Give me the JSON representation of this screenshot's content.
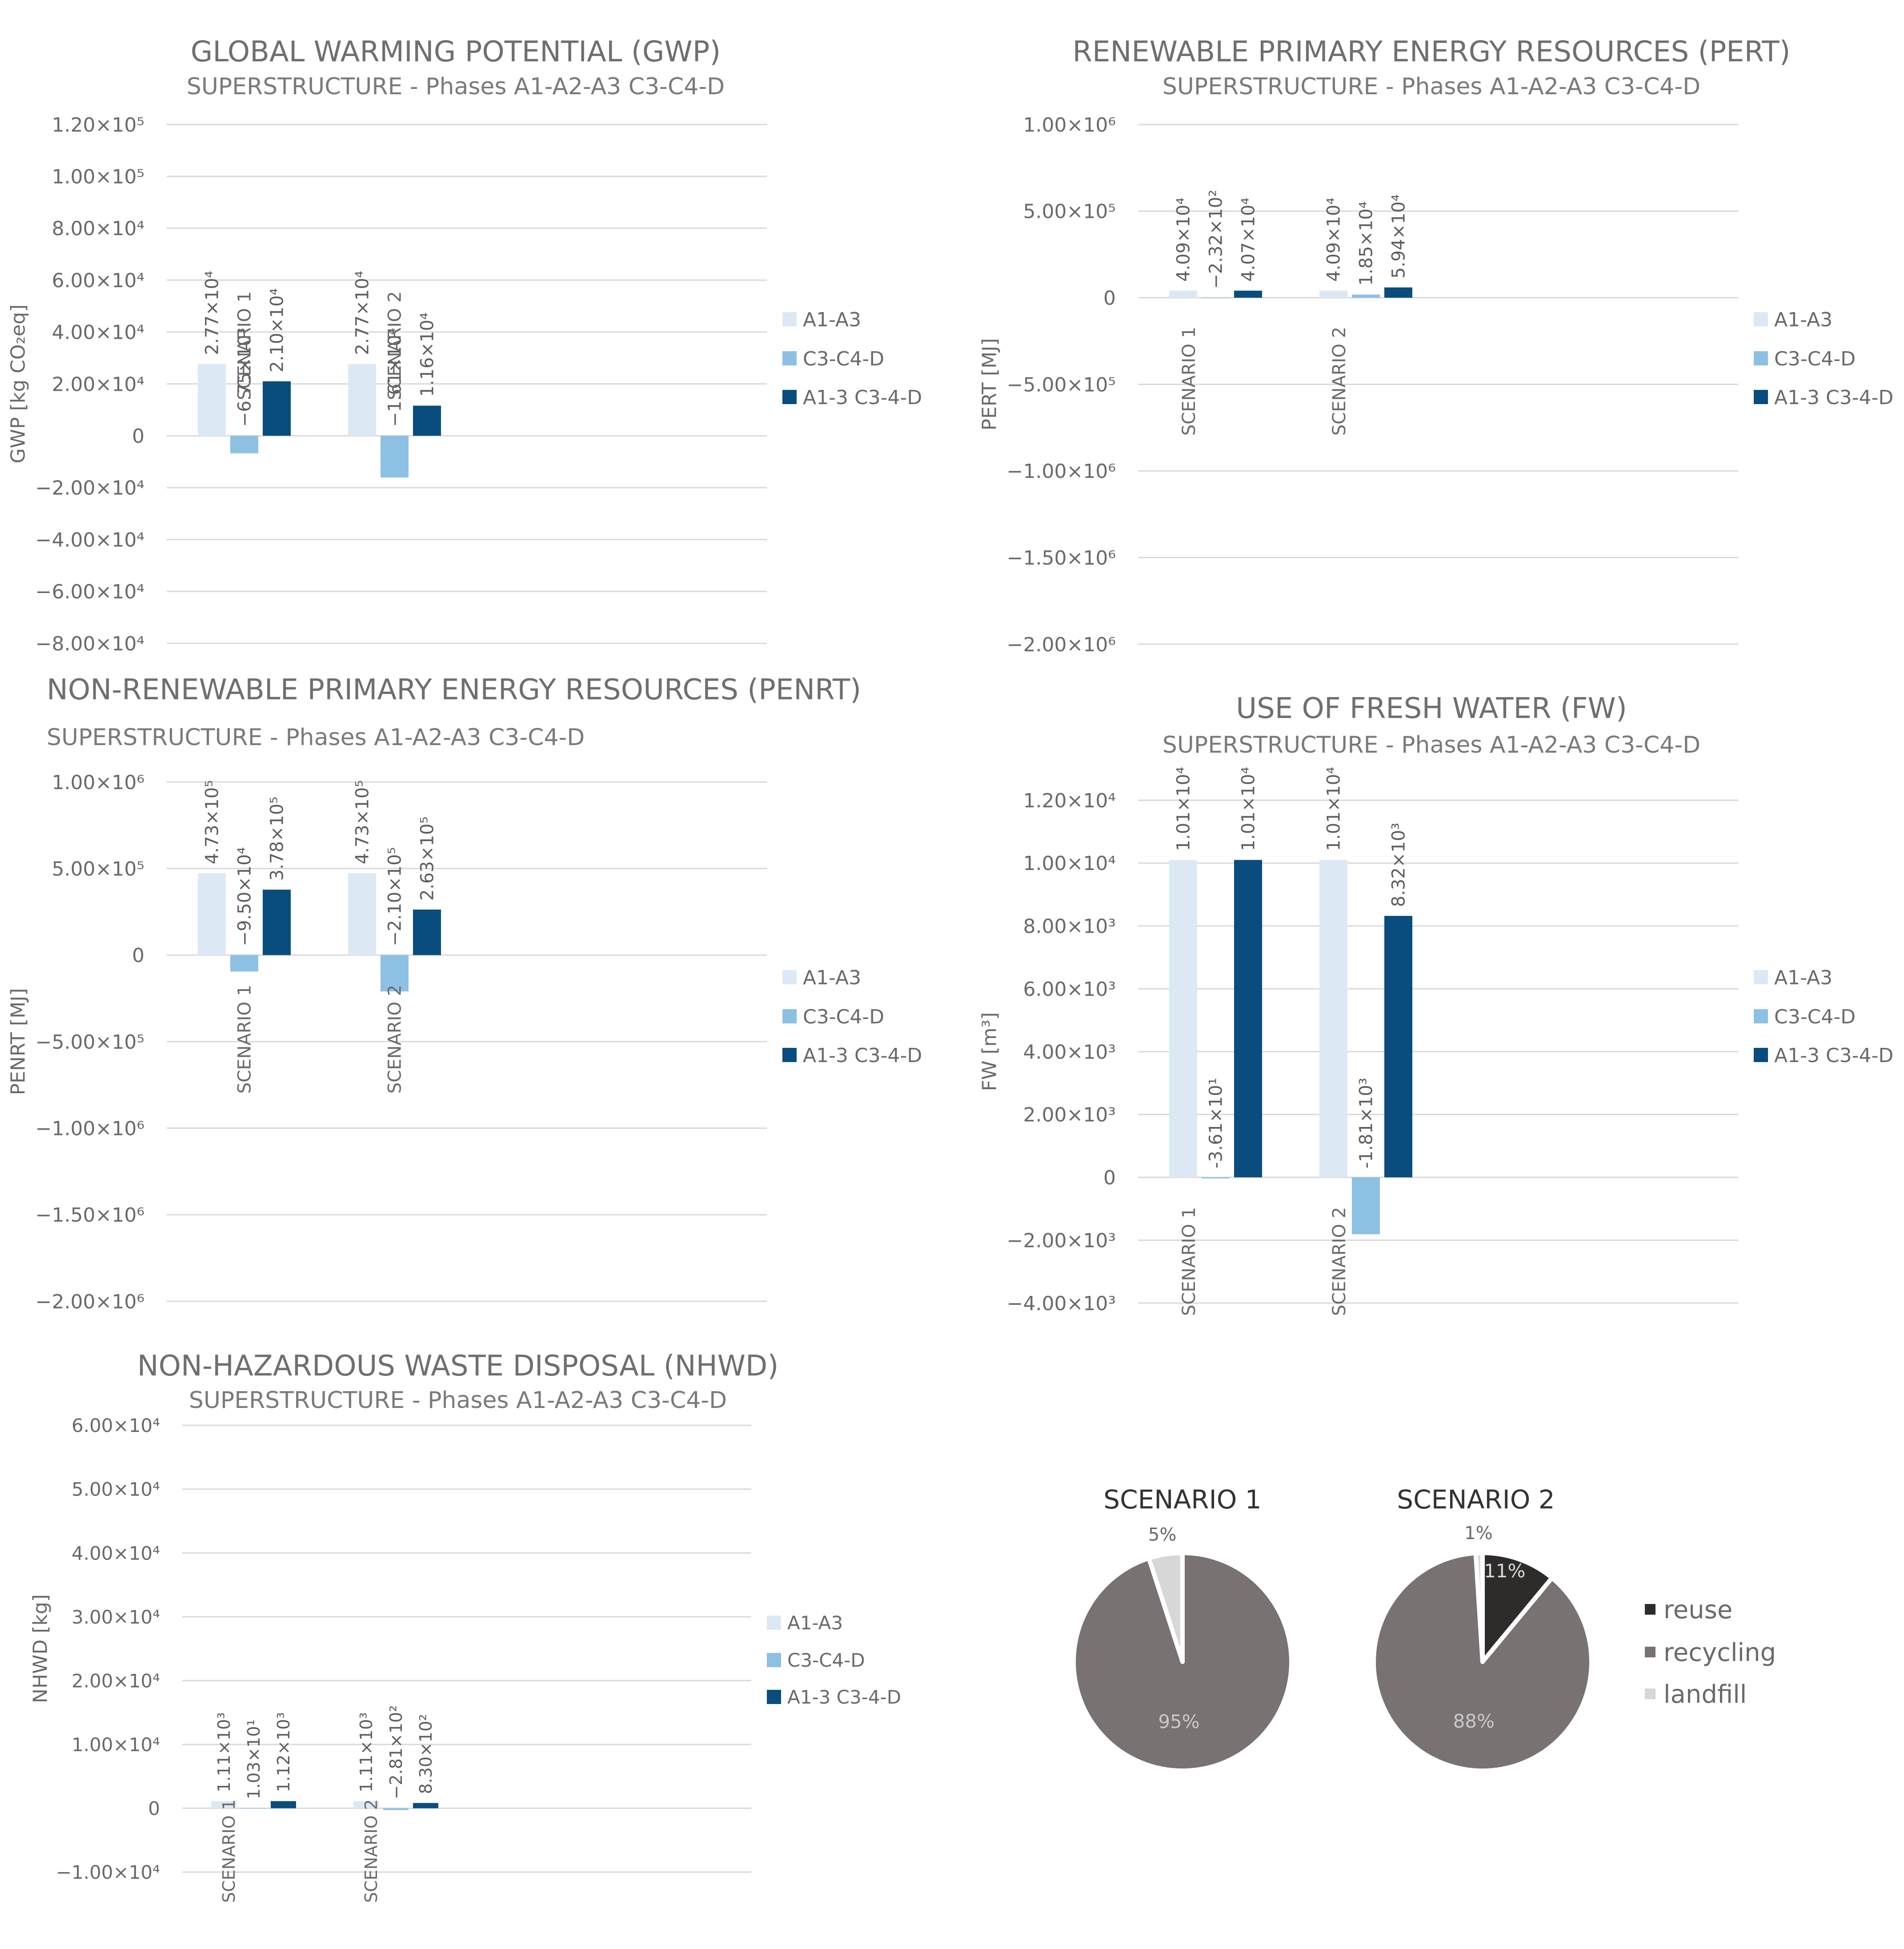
{
  "colors": {
    "A1-A3": "#dce9f5",
    "C3-C4-D": "#8cc1e4",
    "A1-3 C3-4-D": "#084d7d",
    "grid": "#d9d9d9",
    "reuse": "#2e2b2b",
    "recycling": "#787272",
    "landfill": "#d7d7d7"
  },
  "chart_data": [
    {
      "id": "gwp",
      "type": "bar",
      "title": "GLOBAL WARMING POTENTIAL (GWP)",
      "subtitle": "SUPERSTRUCTURE - Phases A1-A2-A3 C3-C4-D",
      "ylabel": "GWP [kg CO₂eq]",
      "ylim": [
        -80000,
        120000
      ],
      "ticks": [
        {
          "v": 120000,
          "label": "1.20×10⁵"
        },
        {
          "v": 100000,
          "label": "1.00×10⁵"
        },
        {
          "v": 80000,
          "label": "8.00×10⁴"
        },
        {
          "v": 60000,
          "label": "6.00×10⁴"
        },
        {
          "v": 40000,
          "label": "4.00×10⁴"
        },
        {
          "v": 20000,
          "label": "2.00×10⁴"
        },
        {
          "v": 0,
          "label": "0"
        },
        {
          "v": -20000,
          "label": "−2.00×10⁴"
        },
        {
          "v": -40000,
          "label": "−4.00×10⁴"
        },
        {
          "v": -60000,
          "label": "−6.00×10⁴"
        },
        {
          "v": -80000,
          "label": "−8.00×10⁴"
        }
      ],
      "categories": [
        "SCENARIO 1",
        "SCENARIO 2"
      ],
      "series": [
        {
          "name": "A1-A3",
          "values": [
            27700,
            27700
          ],
          "labels": [
            "2.77×10⁴",
            "2.77×10⁴"
          ]
        },
        {
          "name": "C3-C4-D",
          "values": [
            -6750,
            -16100
          ],
          "labels": [
            "−6.75×10³",
            "−1.61×10⁴"
          ]
        },
        {
          "name": "A1-3 C3-4-D",
          "values": [
            21000,
            11600
          ],
          "labels": [
            "2.10×10⁴",
            "1.16×10⁴"
          ]
        }
      ],
      "legend": "right",
      "grid": true
    },
    {
      "id": "pert",
      "type": "bar",
      "title": "RENEWABLE PRIMARY ENERGY RESOURCES (PERT)",
      "subtitle": "SUPERSTRUCTURE - Phases A1-A2-A3 C3-C4-D",
      "ylabel": "PERT [MJ]",
      "ylim": [
        -2000000,
        1000000
      ],
      "ticks": [
        {
          "v": 1000000,
          "label": "1.00×10⁶"
        },
        {
          "v": 500000,
          "label": "5.00×10⁵"
        },
        {
          "v": 0,
          "label": "0"
        },
        {
          "v": -500000,
          "label": "−5.00×10⁵"
        },
        {
          "v": -1000000,
          "label": "−1.00×10⁶"
        },
        {
          "v": -1500000,
          "label": "−1.50×10⁶"
        },
        {
          "v": -2000000,
          "label": "−2.00×10⁶"
        }
      ],
      "categories": [
        "SCENARIO 1",
        "SCENARIO 2"
      ],
      "series": [
        {
          "name": "A1-A3",
          "values": [
            40900,
            40900
          ],
          "labels": [
            "4.09×10⁴",
            "4.09×10⁴"
          ]
        },
        {
          "name": "C3-C4-D",
          "values": [
            -232,
            18500
          ],
          "labels": [
            "−2.32×10²",
            "1.85×10⁴"
          ]
        },
        {
          "name": "A1-3 C3-4-D",
          "values": [
            40700,
            59400
          ],
          "labels": [
            "4.07×10⁴",
            "5.94×10⁴"
          ]
        }
      ],
      "legend": "right",
      "grid": true
    },
    {
      "id": "penrt",
      "type": "bar",
      "title": "NON-RENEWABLE PRIMARY ENERGY RESOURCES (PENRT)",
      "subtitle": "SUPERSTRUCTURE - Phases A1-A2-A3 C3-C4-D",
      "ylabel": "PENRT [MJ]",
      "ylim": [
        -2000000,
        1000000
      ],
      "ticks": [
        {
          "v": 1000000,
          "label": "1.00×10⁶"
        },
        {
          "v": 500000,
          "label": "5.00×10⁵"
        },
        {
          "v": 0,
          "label": "0"
        },
        {
          "v": -500000,
          "label": "−5.00×10⁵"
        },
        {
          "v": -1000000,
          "label": "−1.00×10⁶"
        },
        {
          "v": -1500000,
          "label": "−1.50×10⁶"
        },
        {
          "v": -2000000,
          "label": "−2.00×10⁶"
        }
      ],
      "categories": [
        "SCENARIO 1",
        "SCENARIO 2"
      ],
      "series": [
        {
          "name": "A1-A3",
          "values": [
            473000,
            473000
          ],
          "labels": [
            "4.73×10⁵",
            "4.73×10⁵"
          ]
        },
        {
          "name": "C3-C4-D",
          "values": [
            -95000,
            -210000
          ],
          "labels": [
            "−9.50×10⁴",
            "−2.10×10⁵"
          ]
        },
        {
          "name": "A1-3 C3-4-D",
          "values": [
            378000,
            263000
          ],
          "labels": [
            "3.78×10⁵",
            "2.63×10⁵"
          ]
        }
      ],
      "legend": "right",
      "grid": true
    },
    {
      "id": "fw",
      "type": "bar",
      "title": "USE OF FRESH WATER (FW)",
      "subtitle": "SUPERSTRUCTURE - Phases A1-A2-A3 C3-C4-D",
      "ylabel": "FW [m³]",
      "ylim": [
        -4000,
        12000
      ],
      "ticks": [
        {
          "v": 12000,
          "label": "1.20×10⁴"
        },
        {
          "v": 10000,
          "label": "1.00×10⁴"
        },
        {
          "v": 8000,
          "label": "8.00×10³"
        },
        {
          "v": 6000,
          "label": "6.00×10³"
        },
        {
          "v": 4000,
          "label": "4.00×10³"
        },
        {
          "v": 2000,
          "label": "2.00×10³"
        },
        {
          "v": 0,
          "label": "0"
        },
        {
          "v": -2000,
          "label": "−2.00×10³"
        },
        {
          "v": -4000,
          "label": "−4.00×10³"
        }
      ],
      "categories": [
        "SCENARIO 1",
        "SCENARIO 2"
      ],
      "series": [
        {
          "name": "A1-A3",
          "values": [
            10100,
            10100
          ],
          "labels": [
            "1.01×10⁴",
            "1.01×10⁴"
          ]
        },
        {
          "name": "C3-C4-D",
          "values": [
            -36.1,
            -1810
          ],
          "labels": [
            "-3.61×10¹",
            "-1.81×10³"
          ]
        },
        {
          "name": "A1-3 C3-4-D",
          "values": [
            10100,
            8320
          ],
          "labels": [
            "1.01×10⁴",
            "8.32×10³"
          ]
        }
      ],
      "legend": "right",
      "grid": true
    },
    {
      "id": "nhwd",
      "type": "bar",
      "title": "NON-HAZARDOUS WASTE DISPOSAL (NHWD)",
      "subtitle": "SUPERSTRUCTURE - Phases A1-A2-A3 C3-C4-D",
      "ylabel": "NHWD [kg]",
      "ylim": [
        -10000,
        60000
      ],
      "ticks": [
        {
          "v": 60000,
          "label": "6.00×10⁴"
        },
        {
          "v": 50000,
          "label": "5.00×10⁴"
        },
        {
          "v": 40000,
          "label": "4.00×10⁴"
        },
        {
          "v": 30000,
          "label": "3.00×10⁴"
        },
        {
          "v": 20000,
          "label": "2.00×10⁴"
        },
        {
          "v": 10000,
          "label": "1.00×10⁴"
        },
        {
          "v": 0,
          "label": "0"
        },
        {
          "v": -10000,
          "label": "−1.00×10⁴"
        }
      ],
      "categories": [
        "SCENARIO 1",
        "SCENARIO 2"
      ],
      "series": [
        {
          "name": "A1-A3",
          "values": [
            1110,
            1110
          ],
          "labels": [
            "1.11×10³",
            "1.11×10³"
          ]
        },
        {
          "name": "C3-C4-D",
          "values": [
            10.3,
            -281
          ],
          "labels": [
            "1.03×10¹",
            "−2.81×10²"
          ]
        },
        {
          "name": "A1-3 C3-4-D",
          "values": [
            1120,
            830
          ],
          "labels": [
            "1.12×10³",
            "8.30×10²"
          ]
        }
      ],
      "legend": "right",
      "grid": true
    },
    {
      "id": "pies",
      "type": "pie",
      "legend": [
        {
          "key": "reuse",
          "label": "reuse"
        },
        {
          "key": "recycling",
          "label": "recycling"
        },
        {
          "key": "landfill",
          "label": "landfill"
        }
      ],
      "pies": [
        {
          "title": "SCENARIO 1",
          "slices": [
            {
              "key": "recycling",
              "value": 95,
              "label": "95%"
            },
            {
              "key": "landfill",
              "value": 5,
              "label": "5%"
            }
          ]
        },
        {
          "title": "SCENARIO 2",
          "slices": [
            {
              "key": "reuse",
              "value": 11,
              "label": "11%"
            },
            {
              "key": "recycling",
              "value": 88,
              "label": "88%"
            },
            {
              "key": "landfill",
              "value": 1,
              "label": "1%"
            }
          ]
        }
      ]
    }
  ]
}
